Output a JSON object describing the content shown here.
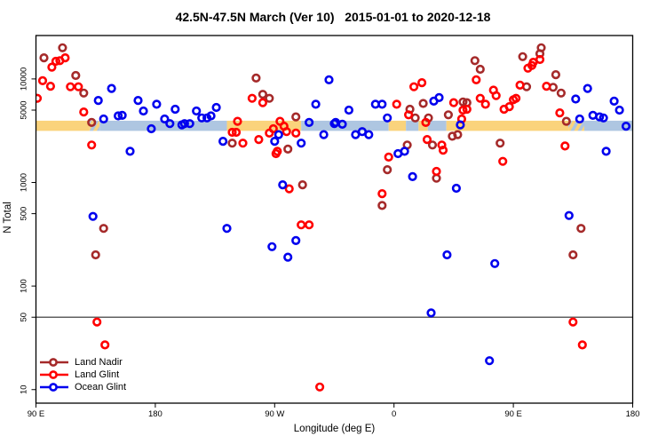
{
  "title": "42.5N-47.5N March (Ver 10)   2015-01-01 to 2020-12-18",
  "chart_data": {
    "type": "scatter",
    "title": "42.5N-47.5N March (Ver 10)   2015-01-01 to 2020-12-18",
    "xlabel": "Longitude (deg E)",
    "ylabel": "N Total",
    "x_axis": {
      "lim": [
        90,
        540
      ],
      "ticks": [
        90,
        180,
        270,
        360,
        450,
        540
      ],
      "tick_labels": [
        "90 E",
        "180",
        "90 W",
        "0",
        "90 E",
        "180"
      ]
    },
    "y_axis": {
      "scale": "log",
      "lim": [
        7.4,
        26250
      ],
      "ticks": [
        10,
        50,
        100,
        500,
        1000,
        5000,
        10000
      ],
      "tick_labels": [
        "10",
        "50",
        "100",
        "500",
        "1000",
        "5000",
        "10000"
      ]
    },
    "grid": "off",
    "legend_position": "bottom-left",
    "reference_line": {
      "value": 50,
      "color": "#606060"
    },
    "band": {
      "value_range": [
        3150,
        3950
      ],
      "land_color": "#FAD37C",
      "ocean_color": "#AEC6E1",
      "segments": [
        {
          "from": 90,
          "to": 130,
          "surface": "land"
        },
        {
          "from": 130,
          "to": 138,
          "surface": "mixed"
        },
        {
          "from": 138,
          "to": 234,
          "surface": "ocean"
        },
        {
          "from": 234,
          "to": 290,
          "surface": "land"
        },
        {
          "from": 290,
          "to": 356,
          "surface": "ocean"
        },
        {
          "from": 356,
          "to": 369,
          "surface": "land"
        },
        {
          "from": 369,
          "to": 378.5,
          "surface": "ocean"
        },
        {
          "from": 378.5,
          "to": 385.5,
          "surface": "land"
        },
        {
          "from": 385.5,
          "to": 399.5,
          "surface": "ocean"
        },
        {
          "from": 399.5,
          "to": 491.5,
          "surface": "land"
        },
        {
          "from": 491.5,
          "to": 503.5,
          "surface": "mixed"
        },
        {
          "from": 503.5,
          "to": 540,
          "surface": "ocean"
        }
      ]
    },
    "series": [
      {
        "name": "Land Nadir",
        "color": "#A52A2A",
        "points": [
          [
            96,
            16000
          ],
          [
            110,
            20000
          ],
          [
            120,
            10800
          ],
          [
            126,
            7300
          ],
          [
            132,
            3800
          ],
          [
            135,
            200
          ],
          [
            141,
            360
          ],
          [
            238,
            2400
          ],
          [
            256,
            10200
          ],
          [
            261,
            7100
          ],
          [
            266,
            6500
          ],
          [
            280,
            2100
          ],
          [
            286,
            4300
          ],
          [
            291,
            950
          ],
          [
            351,
            600
          ],
          [
            355,
            1330
          ],
          [
            370,
            2300
          ],
          [
            372,
            5100
          ],
          [
            376,
            4200
          ],
          [
            382,
            5800
          ],
          [
            386,
            4200
          ],
          [
            389,
            2300
          ],
          [
            392,
            1100
          ],
          [
            401,
            4500
          ],
          [
            404,
            2800
          ],
          [
            408,
            2900
          ],
          [
            412,
            6000
          ],
          [
            415,
            5900
          ],
          [
            421,
            15000
          ],
          [
            425,
            12400
          ],
          [
            440,
            2400
          ],
          [
            457,
            16400
          ],
          [
            460,
            8400
          ],
          [
            470,
            17500
          ],
          [
            471,
            20000
          ],
          [
            480,
            8300
          ],
          [
            482,
            11000
          ],
          [
            486,
            7300
          ],
          [
            490,
            3900
          ],
          [
            495,
            200
          ],
          [
            501,
            360
          ]
        ]
      },
      {
        "name": "Land Glint",
        "color": "#FF0000",
        "points": [
          [
            91,
            6500
          ],
          [
            95,
            9600
          ],
          [
            101,
            8500
          ],
          [
            102,
            13000
          ],
          [
            105,
            14800
          ],
          [
            108,
            15000
          ],
          [
            112,
            16000
          ],
          [
            116,
            8400
          ],
          [
            122,
            8400
          ],
          [
            126,
            4800
          ],
          [
            132,
            2300
          ],
          [
            136,
            45
          ],
          [
            142,
            27
          ],
          [
            238,
            3050
          ],
          [
            241,
            3050
          ],
          [
            242,
            3900
          ],
          [
            246,
            2400
          ],
          [
            253,
            6500
          ],
          [
            258,
            2600
          ],
          [
            261,
            5900
          ],
          [
            266,
            3000
          ],
          [
            269,
            3300
          ],
          [
            271,
            1900
          ],
          [
            272,
            2000
          ],
          [
            274,
            3900
          ],
          [
            277,
            3500
          ],
          [
            279,
            3100
          ],
          [
            281,
            870
          ],
          [
            286,
            3000
          ],
          [
            290,
            390
          ],
          [
            296,
            390
          ],
          [
            304,
            10.6
          ],
          [
            351,
            780
          ],
          [
            356,
            1760
          ],
          [
            362,
            5700
          ],
          [
            371,
            4500
          ],
          [
            375,
            8400
          ],
          [
            381,
            9200
          ],
          [
            384,
            3800
          ],
          [
            385,
            2600
          ],
          [
            392,
            1280
          ],
          [
            396,
            2300
          ],
          [
            397,
            2050
          ],
          [
            405,
            5900
          ],
          [
            411,
            4100
          ],
          [
            412,
            5000
          ],
          [
            415,
            5100
          ],
          [
            422,
            9800
          ],
          [
            425,
            6500
          ],
          [
            429,
            5700
          ],
          [
            435,
            7800
          ],
          [
            437,
            6900
          ],
          [
            442,
            1600
          ],
          [
            443,
            5100
          ],
          [
            447,
            5400
          ],
          [
            450,
            6300
          ],
          [
            452,
            6500
          ],
          [
            455,
            8700
          ],
          [
            461,
            12700
          ],
          [
            464,
            13500
          ],
          [
            465,
            14500
          ],
          [
            470,
            15400
          ],
          [
            475,
            8500
          ],
          [
            485,
            4700
          ],
          [
            489,
            2250
          ],
          [
            495,
            45
          ],
          [
            502,
            27
          ]
        ]
      },
      {
        "name": "Ocean Glint",
        "color": "#0000EE",
        "points": [
          [
            133,
            470
          ],
          [
            137,
            6200
          ],
          [
            141,
            4100
          ],
          [
            147,
            8100
          ],
          [
            152,
            4400
          ],
          [
            155,
            4450
          ],
          [
            161,
            2000
          ],
          [
            167,
            6200
          ],
          [
            171,
            4900
          ],
          [
            177,
            3300
          ],
          [
            181,
            5700
          ],
          [
            187,
            4100
          ],
          [
            191,
            3700
          ],
          [
            195,
            5100
          ],
          [
            200,
            3600
          ],
          [
            202,
            3700
          ],
          [
            206,
            3700
          ],
          [
            211,
            4900
          ],
          [
            215,
            4200
          ],
          [
            219,
            4200
          ],
          [
            222,
            4400
          ],
          [
            226,
            5300
          ],
          [
            231,
            2500
          ],
          [
            234,
            360
          ],
          [
            268,
            240
          ],
          [
            270,
            2500
          ],
          [
            273,
            2900
          ],
          [
            276,
            950
          ],
          [
            280,
            190
          ],
          [
            286,
            275
          ],
          [
            290,
            2400
          ],
          [
            296,
            3800
          ],
          [
            301,
            5700
          ],
          [
            307,
            2900
          ],
          [
            311,
            9800
          ],
          [
            315,
            3700
          ],
          [
            316,
            3800
          ],
          [
            321,
            3650
          ],
          [
            326,
            5000
          ],
          [
            331,
            2900
          ],
          [
            336,
            3100
          ],
          [
            341,
            2900
          ],
          [
            346,
            5700
          ],
          [
            351,
            5700
          ],
          [
            355,
            4200
          ],
          [
            363,
            1900
          ],
          [
            368,
            2000
          ],
          [
            374,
            1140
          ],
          [
            388,
            55
          ],
          [
            390,
            6100
          ],
          [
            394,
            6600
          ],
          [
            400,
            200
          ],
          [
            407,
            880
          ],
          [
            410,
            3600
          ],
          [
            432,
            19
          ],
          [
            436,
            165
          ],
          [
            492,
            480
          ],
          [
            497,
            6400
          ],
          [
            500,
            4100
          ],
          [
            506,
            8100
          ],
          [
            510,
            4450
          ],
          [
            515,
            4300
          ],
          [
            518,
            4200
          ],
          [
            520,
            2000
          ],
          [
            526,
            6100
          ],
          [
            530,
            5000
          ],
          [
            535,
            3500
          ]
        ]
      }
    ]
  }
}
